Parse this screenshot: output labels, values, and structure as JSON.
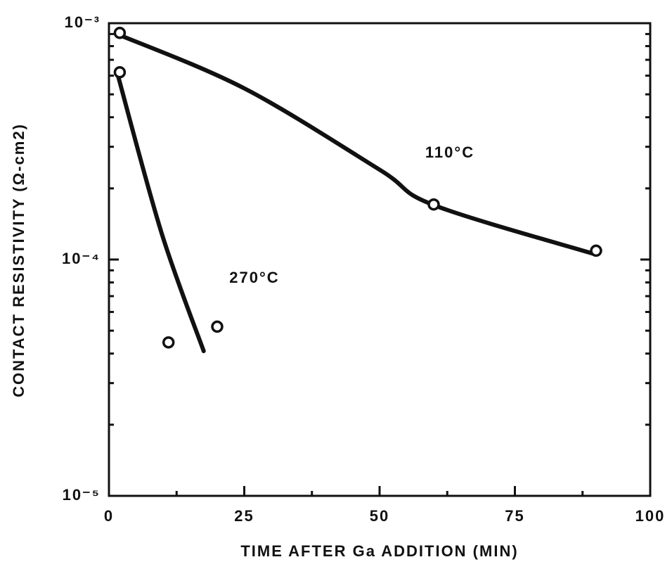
{
  "chart_data": {
    "type": "scatter",
    "xlabel": "TIME AFTER Ga ADDITION (MIN)",
    "ylabel": "CONTACT RESISTIVITY (Ω-cm2)",
    "xlim": [
      0,
      100
    ],
    "xticks": [
      0,
      25,
      50,
      75,
      100
    ],
    "ylim": [
      1e-05,
      0.001
    ],
    "yscale": "log",
    "yticks": [
      {
        "value": 1e-05,
        "label": "10⁻⁵"
      },
      {
        "value": 0.0001,
        "label": "10⁻⁴"
      },
      {
        "value": 0.001,
        "label": "10⁻³"
      }
    ],
    "minor_ticks": true,
    "series": [
      {
        "name": "110°C",
        "color": "#111111",
        "x": [
          2,
          60,
          90
        ],
        "values": [
          0.00091,
          0.000171,
          0.000109
        ],
        "fit_x": [
          1.5,
          25,
          50,
          60,
          90
        ],
        "fit_values": [
          0.0009,
          0.00053,
          0.00024,
          0.00017,
          0.000105
        ]
      },
      {
        "name": "270°C",
        "color": "#111111",
        "x": [
          2,
          11,
          20
        ],
        "values": [
          0.00062,
          4.46e-05,
          5.2e-05
        ],
        "fit_x": [
          1.5,
          9.7,
          17.5
        ],
        "fit_values": [
          0.00062,
          0.00013,
          4.1e-05
        ]
      }
    ]
  }
}
